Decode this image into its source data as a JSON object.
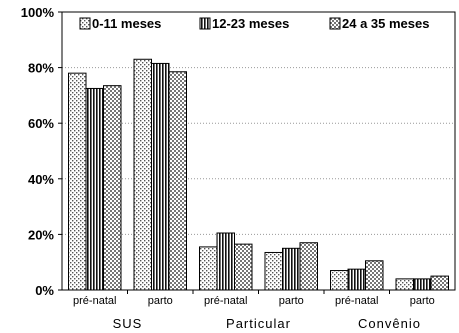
{
  "chart_data": {
    "type": "bar",
    "categories": [
      "pré-natal",
      "parto",
      "pré-natal",
      "parto",
      "pré-natal",
      "parto"
    ],
    "groups": [
      {
        "label": "SUS",
        "categories": [
          0,
          1
        ]
      },
      {
        "label": "Particular",
        "categories": [
          2,
          3
        ]
      },
      {
        "label": "Convênio",
        "categories": [
          4,
          5
        ]
      }
    ],
    "series": [
      {
        "name": "0-11 meses",
        "values": [
          78,
          83,
          15.5,
          13.5,
          7,
          4
        ]
      },
      {
        "name": "12-23 meses",
        "values": [
          72.5,
          81.5,
          20.5,
          15,
          7.5,
          4
        ]
      },
      {
        "name": "24 a 35 meses",
        "values": [
          73.5,
          78.5,
          16.5,
          17,
          10.5,
          5
        ]
      }
    ],
    "yticks": [
      "0%",
      "20%",
      "40%",
      "60%",
      "80%",
      "100%"
    ],
    "ylim": [
      0,
      100
    ],
    "grid": true,
    "legend_position": "top"
  }
}
